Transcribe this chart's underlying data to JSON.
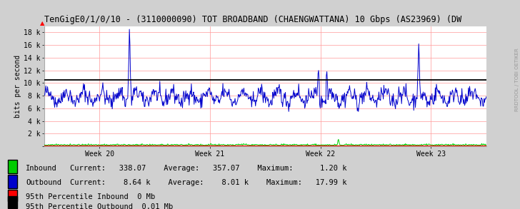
{
  "title": "TenGigE0/1/0/10 - (3110000090) TOT BROADBAND (CHAENGWATTANA) 10 Gbps (AS23969) (DW",
  "ylabel": "bits per second",
  "bg_color": "#d0d0d0",
  "plot_bg_color": "#ffffff",
  "grid_color": "#ff9999",
  "num_points": 800,
  "x_tick_labels": [
    "Week 20",
    "Week 21",
    "Week 22",
    "Week 23"
  ],
  "x_tick_positions": [
    0.125,
    0.375,
    0.625,
    0.875
  ],
  "yticks": [
    0,
    2000,
    4000,
    6000,
    8000,
    10000,
    12000,
    14000,
    16000,
    18000
  ],
  "ytick_labels": [
    "",
    "2 k",
    "4 k",
    "6 k",
    "8 k",
    "10 k",
    "12 k",
    "14 k",
    "16 k",
    "18 k"
  ],
  "ylim": [
    0,
    19000
  ],
  "outbound_color": "#0000cc",
  "inbound_color": "#00cc00",
  "percentile_line_color": "#000000",
  "percentile_line_value": 10500,
  "red_line_value": 150,
  "watermark": "RRDTOOL / TOBI OETIKER",
  "legend1_color_inbound": "#00cc00",
  "legend1_color_outbound": "#0000cc",
  "legend2_color_95th_in": "#ff0000",
  "legend2_color_95th_out": "#000000",
  "inbound_current": "338.07",
  "inbound_average": "357.07",
  "inbound_maximum": "1.20 k",
  "outbound_current": "8.64 k",
  "outbound_average": "8.01 k",
  "outbound_maximum": "17.99 k",
  "percentile_inbound_label": "95th Percentile Inbound  0 Mb",
  "percentile_outbound_label": "95th Percentile Outbound  0.01 Mb",
  "title_fontsize": 8.5,
  "label_fontsize": 7,
  "tick_fontsize": 7,
  "legend_fontsize": 7.5
}
